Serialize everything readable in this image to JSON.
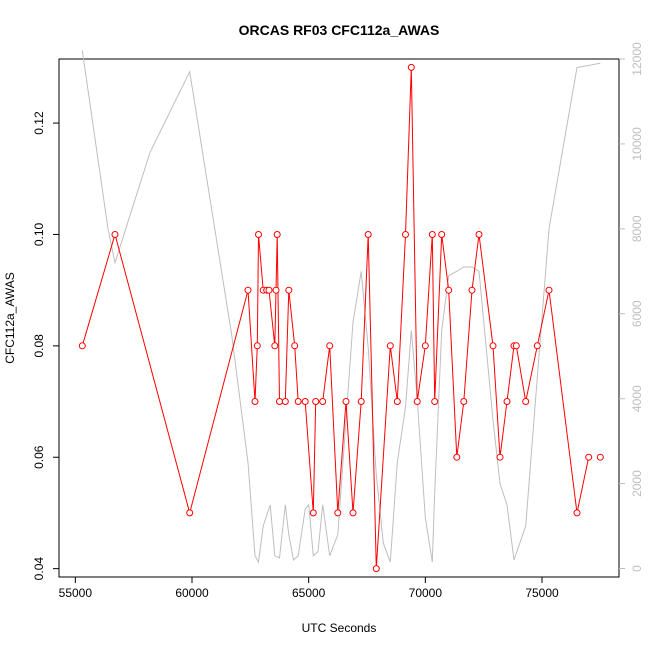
{
  "chart_data": {
    "type": "line",
    "title": "ORCAS RF03 CFC112a_AWAS",
    "xlabel": "UTC Seconds",
    "ylabel": "CFC112a_AWAS",
    "y2label": "",
    "xlim": [
      54300,
      78300
    ],
    "ylim": [
      0.0385,
      0.1315
    ],
    "y2lim": [
      -200,
      12000
    ],
    "xticks": [
      55000,
      60000,
      65000,
      70000,
      75000
    ],
    "yticks": [
      0.04,
      0.06,
      0.08,
      0.1,
      0.12
    ],
    "y2ticks": [
      0,
      2000,
      4000,
      6000,
      8000,
      10000,
      12000
    ],
    "grid": false,
    "series": [
      {
        "style": "line+open-circles",
        "color": "#ff0000",
        "x": [
          55300,
          56700,
          59900,
          62400,
          62700,
          62800,
          62850,
          63050,
          63200,
          63300,
          63550,
          63600,
          63650,
          63750,
          64000,
          64150,
          64400,
          64550,
          64850,
          65200,
          65300,
          65600,
          65900,
          66250,
          66600,
          66900,
          67250,
          67550,
          67900,
          68500,
          68800,
          69150,
          69400,
          69650,
          70000,
          70300,
          70400,
          70700,
          71000,
          71350,
          71650,
          72000,
          72300,
          72900,
          73200,
          73500,
          73800,
          73900,
          74300,
          74800,
          75300,
          76500,
          77000,
          77500
        ],
        "y": [
          0.08,
          0.1,
          0.05,
          0.09,
          0.07,
          0.08,
          0.1,
          0.09,
          0.09,
          0.09,
          0.08,
          0.09,
          0.1,
          0.07,
          0.07,
          0.09,
          0.08,
          0.07,
          0.07,
          0.05,
          0.07,
          0.07,
          0.08,
          0.05,
          0.07,
          0.05,
          0.07,
          0.1,
          0.04,
          0.08,
          0.07,
          0.1,
          0.13,
          0.07,
          0.08,
          0.1,
          0.07,
          0.1,
          0.09,
          0.06,
          0.07,
          0.09,
          0.1,
          0.08,
          0.06,
          0.07,
          0.08,
          0.08,
          0.07,
          0.08,
          0.09,
          0.05,
          0.06,
          0.06
        ],
        "connected_upto_index": 52
      },
      {
        "style": "line",
        "axis": "right",
        "color": "#bebebe",
        "x": [
          55300,
          56400,
          56700,
          58200,
          59900,
          61700,
          62400,
          62700,
          62850,
          63050,
          63350,
          63550,
          63750,
          64000,
          64150,
          64350,
          64550,
          64850,
          65000,
          65200,
          65400,
          65600,
          65900,
          66250,
          66600,
          66900,
          67250,
          67550,
          67900,
          68200,
          68500,
          68800,
          69150,
          69400,
          69650,
          70000,
          70300,
          70400,
          70700,
          71000,
          71350,
          71650,
          72000,
          72300,
          72900,
          73200,
          73500,
          73800,
          74300,
          74800,
          75300,
          76500,
          77500
        ],
        "y": [
          12200,
          8000,
          7200,
          9800,
          11700,
          5500,
          2500,
          300,
          150,
          1000,
          1500,
          300,
          250,
          1500,
          800,
          200,
          300,
          1400,
          1500,
          300,
          400,
          1500,
          300,
          800,
          3500,
          5800,
          7000,
          5200,
          2200,
          600,
          150,
          2500,
          3800,
          5600,
          4000,
          1200,
          150,
          1800,
          5600,
          6900,
          7000,
          7100,
          7100,
          7000,
          3500,
          2000,
          1500,
          200,
          1000,
          4500,
          8000,
          11800,
          11900
        ]
      }
    ]
  }
}
